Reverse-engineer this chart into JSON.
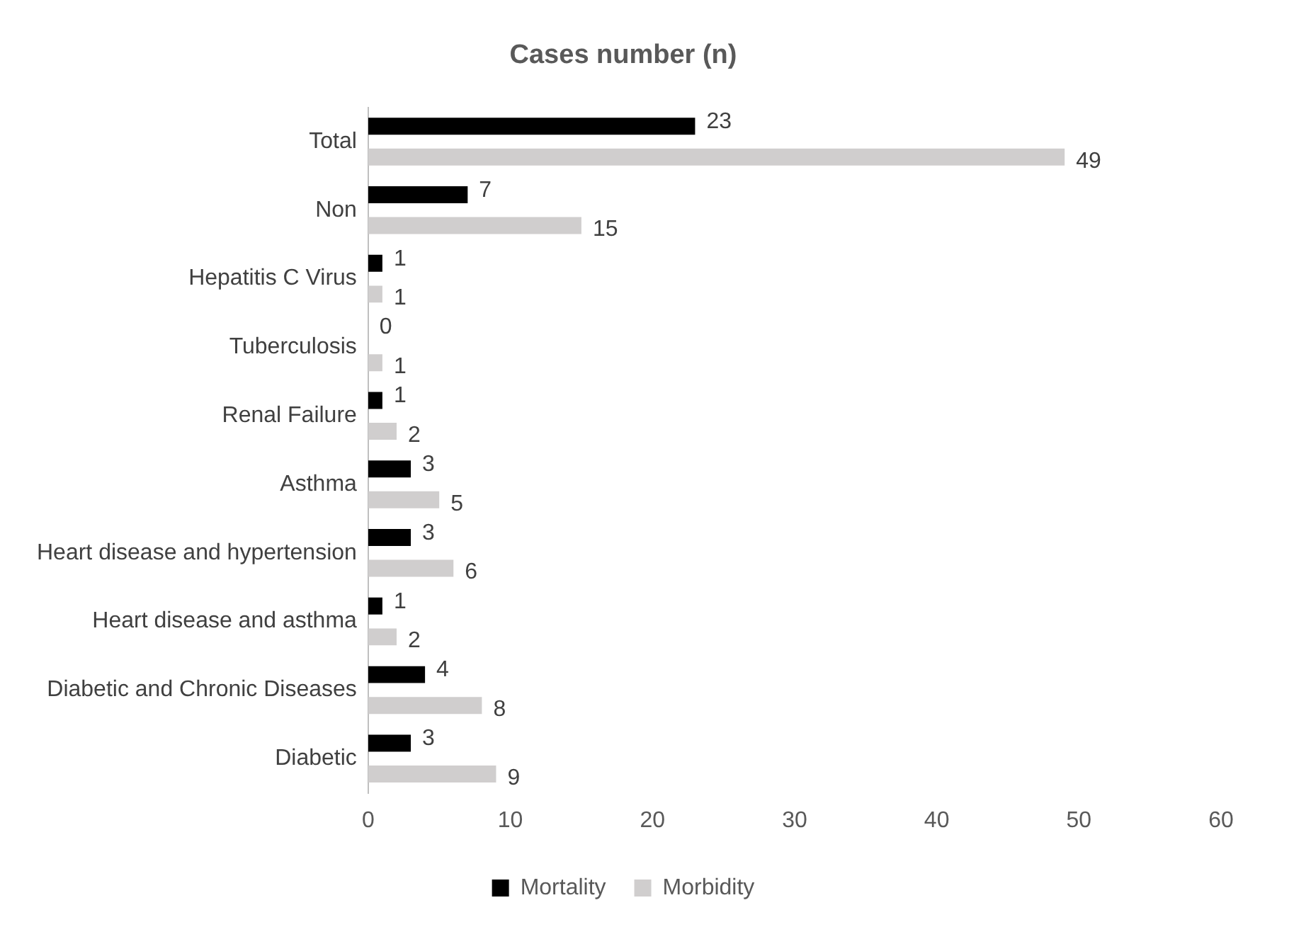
{
  "chart_data": {
    "type": "bar",
    "orientation": "horizontal",
    "title": "Cases number (n)",
    "categories": [
      "Total",
      "Non",
      "Hepatitis C Virus",
      "Tuberculosis",
      "Renal Failure",
      "Asthma",
      "Heart disease and hypertension",
      "Heart disease and asthma",
      "Diabetic and Chronic Diseases",
      "Diabetic"
    ],
    "series": [
      {
        "name": "Mortality",
        "color": "#000000",
        "values": [
          23,
          7,
          1,
          0,
          1,
          3,
          3,
          1,
          4,
          3
        ]
      },
      {
        "name": "Morbidity",
        "color": "#d0cece",
        "values": [
          49,
          15,
          1,
          1,
          2,
          5,
          6,
          2,
          8,
          9
        ]
      }
    ],
    "xlim": [
      0,
      60
    ],
    "xticks": [
      0,
      10,
      20,
      30,
      40,
      50,
      60
    ],
    "grid": false,
    "legend": "bottom",
    "data_labels": true
  }
}
